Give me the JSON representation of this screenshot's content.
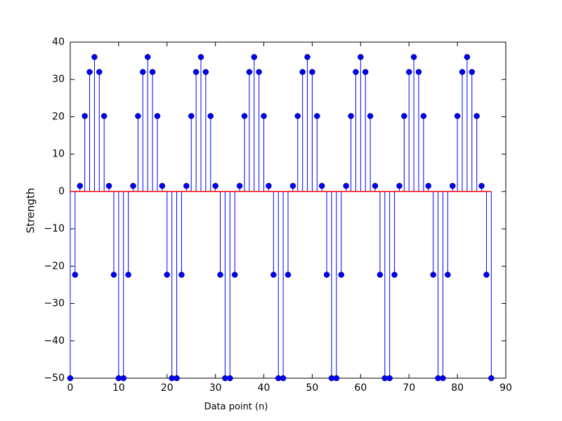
{
  "chart_data": {
    "type": "stem",
    "x_label": "Data point (n)",
    "y_label": "Strength",
    "x": [
      0,
      1,
      2,
      3,
      4,
      5,
      6,
      7,
      8,
      9,
      10,
      11,
      12,
      13,
      14,
      15,
      16,
      17,
      18,
      19,
      20,
      21,
      22,
      23,
      24,
      25,
      26,
      27,
      28,
      29,
      30,
      31,
      32,
      33,
      34,
      35,
      36,
      37,
      38,
      39,
      40,
      41,
      42,
      43,
      44,
      45,
      46,
      47,
      48,
      49,
      50,
      51,
      52,
      53,
      54,
      55,
      56,
      57,
      58,
      59,
      60,
      61,
      62,
      63,
      64,
      65,
      66,
      67,
      68,
      69,
      70,
      71,
      72,
      73,
      74,
      75,
      76,
      77,
      78,
      79,
      80,
      81,
      82,
      83,
      84,
      85,
      86,
      87
    ],
    "values": [
      -50,
      -22.3,
      1.5,
      20.2,
      32,
      36,
      32,
      20.2,
      1.5,
      -22.3,
      -50,
      -50,
      -22.3,
      1.5,
      20.2,
      32,
      36,
      32,
      20.2,
      1.5,
      -22.3,
      -50,
      -50,
      -22.3,
      1.5,
      20.2,
      32,
      36,
      32,
      20.2,
      1.5,
      -22.3,
      -50,
      -50,
      -22.3,
      1.5,
      20.2,
      32,
      36,
      32,
      20.2,
      1.5,
      -22.3,
      -50,
      -50,
      -22.3,
      1.5,
      20.2,
      32,
      36,
      32,
      20.2,
      1.5,
      -22.3,
      -50,
      -50,
      -22.3,
      1.5,
      20.2,
      32,
      36,
      32,
      20.2,
      1.5,
      -22.3,
      -50,
      -50,
      -22.3,
      1.5,
      20.2,
      32,
      36,
      32,
      20.2,
      1.5,
      -22.3,
      -50,
      -50,
      -22.3,
      1.5,
      20.2,
      32,
      36,
      32,
      20.2,
      1.5,
      -22.3,
      -50
    ],
    "color": "#0000ff",
    "baseline_color": "#ff0000",
    "xlim": [
      0,
      90
    ],
    "xticks": [
      0,
      10,
      20,
      30,
      40,
      50,
      60,
      70,
      80,
      90
    ],
    "ylim": [
      -50,
      40
    ],
    "yticks": [
      {
        "value": -50,
        "label": "−50"
      },
      {
        "value": -40,
        "label": "−40"
      },
      {
        "value": -30,
        "label": "−30"
      },
      {
        "value": -20,
        "label": "−20"
      },
      {
        "value": -10,
        "label": "−10"
      },
      0,
      10,
      20,
      30,
      40
    ]
  }
}
